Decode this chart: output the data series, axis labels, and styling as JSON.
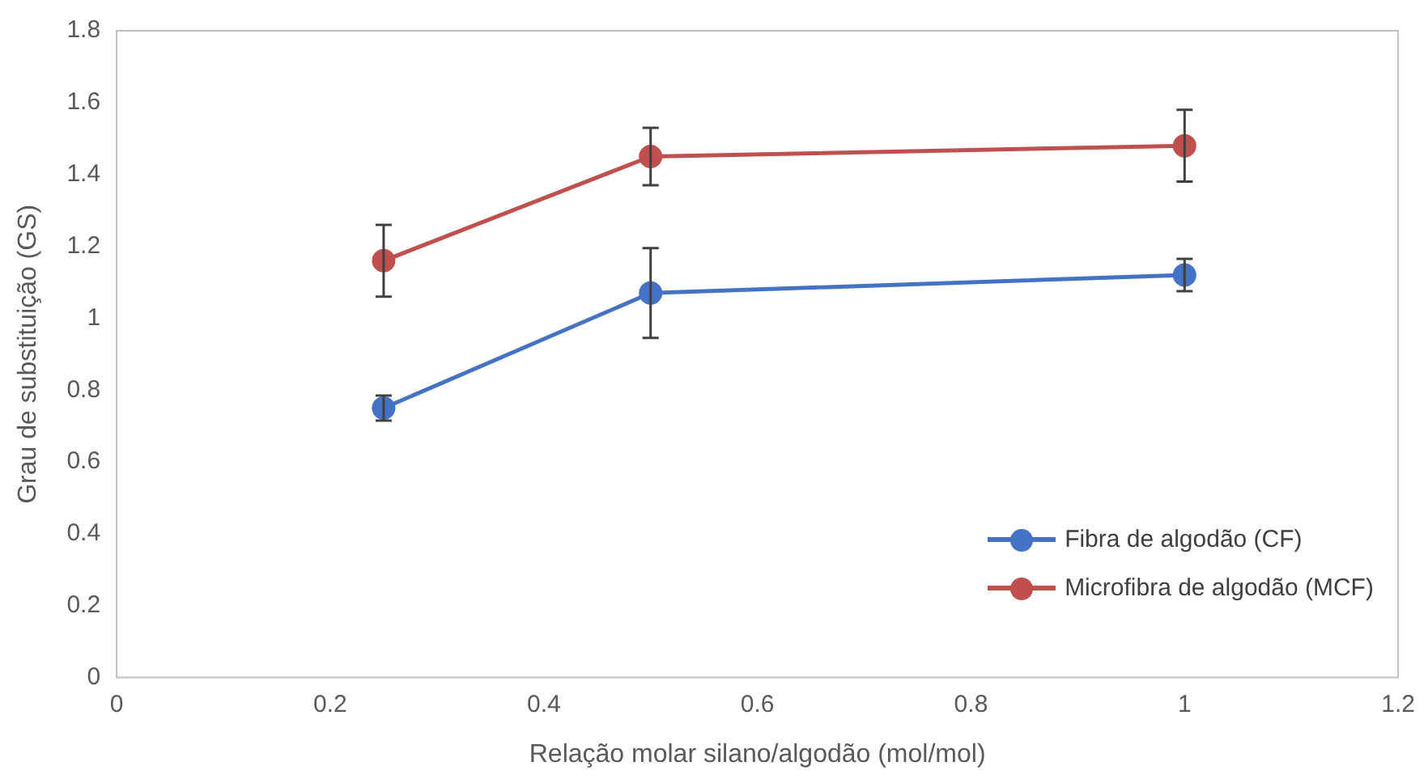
{
  "chart_data": {
    "type": "line",
    "xlabel": "Relação molar silano/algodão (mol/mol)",
    "ylabel": "Grau de substituição (GS)",
    "x": [
      0.25,
      0.5,
      1
    ],
    "series": [
      {
        "name": "Fibra de algodão (CF)",
        "color": "#4472c4",
        "values": [
          0.75,
          1.07,
          1.12
        ],
        "errors": [
          0.035,
          0.125,
          0.045
        ]
      },
      {
        "name": "Microfibra de algodão (MCF)",
        "color": "#c0504d",
        "values": [
          1.16,
          1.45,
          1.48
        ],
        "errors": [
          0.1,
          0.08,
          0.1
        ]
      }
    ],
    "xlim": [
      0,
      1.2
    ],
    "xticks": [
      0,
      0.2,
      0.4,
      0.6,
      0.8,
      1,
      1.2
    ],
    "ylim": [
      0,
      1.8
    ],
    "yticks": [
      0,
      0.2,
      0.4,
      0.6,
      0.8,
      1,
      1.2,
      1.4,
      1.6,
      1.8
    ],
    "grid": false,
    "legend": "bottom right",
    "marker": "circle",
    "line_style": "solid"
  }
}
